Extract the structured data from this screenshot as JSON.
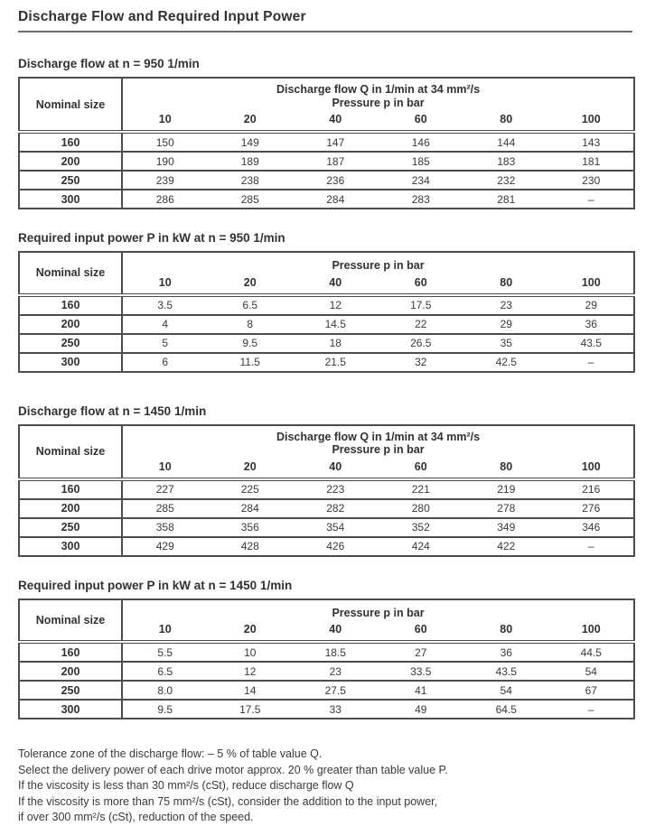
{
  "page": {
    "title": "Discharge Flow and Required Input Power"
  },
  "labels": {
    "nominal_size": "Nominal size",
    "flow_header": "Discharge flow Q in 1/min at 34 mm²/s",
    "pressure_header": "Pressure p in bar"
  },
  "pressure_columns": [
    "10",
    "20",
    "40",
    "60",
    "80",
    "100"
  ],
  "tables": [
    {
      "title": "Discharge flow at n = 950 1/min",
      "rows": [
        {
          "size": "160",
          "values": [
            "150",
            "149",
            "147",
            "146",
            "144",
            "143"
          ]
        },
        {
          "size": "200",
          "values": [
            "190",
            "189",
            "187",
            "185",
            "183",
            "181"
          ]
        },
        {
          "size": "250",
          "values": [
            "239",
            "238",
            "236",
            "234",
            "232",
            "230"
          ]
        },
        {
          "size": "300",
          "values": [
            "286",
            "285",
            "284",
            "283",
            "281",
            "–"
          ]
        }
      ]
    },
    {
      "title": "Required input power P in kW at n = 950 1/min",
      "rows": [
        {
          "size": "160",
          "values": [
            "3.5",
            "6.5",
            "12",
            "17.5",
            "23",
            "29"
          ]
        },
        {
          "size": "200",
          "values": [
            "4",
            "8",
            "14.5",
            "22",
            "29",
            "36"
          ]
        },
        {
          "size": "250",
          "values": [
            "5",
            "9.5",
            "18",
            "26.5",
            "35",
            "43.5"
          ]
        },
        {
          "size": "300",
          "values": [
            "6",
            "11.5",
            "21.5",
            "32",
            "42.5",
            "–"
          ]
        }
      ]
    },
    {
      "title": "Discharge flow at n = 1450 1/min",
      "rows": [
        {
          "size": "160",
          "values": [
            "227",
            "225",
            "223",
            "221",
            "219",
            "216"
          ]
        },
        {
          "size": "200",
          "values": [
            "285",
            "284",
            "282",
            "280",
            "278",
            "276"
          ]
        },
        {
          "size": "250",
          "values": [
            "358",
            "356",
            "354",
            "352",
            "349",
            "346"
          ]
        },
        {
          "size": "300",
          "values": [
            "429",
            "428",
            "426",
            "424",
            "422",
            "–"
          ]
        }
      ]
    },
    {
      "title": "Required input power P in kW at n = 1450 1/min",
      "rows": [
        {
          "size": "160",
          "values": [
            "5.5",
            "10",
            "18.5",
            "27",
            "36",
            "44.5"
          ]
        },
        {
          "size": "200",
          "values": [
            "6.5",
            "12",
            "23",
            "33.5",
            "43.5",
            "54"
          ]
        },
        {
          "size": "250",
          "values": [
            "8.0",
            "14",
            "27.5",
            "41",
            "54",
            "67"
          ]
        },
        {
          "size": "300",
          "values": [
            "9.5",
            "17.5",
            "33",
            "49",
            "64.5",
            "–"
          ]
        }
      ]
    }
  ],
  "notes": [
    "Tolerance zone of the discharge flow: – 5 % of table value Q.",
    "Select the delivery power of each drive motor approx. 20 % greater than table value P.",
    "If the viscosity is less than 30 mm²/s (cSt), reduce discharge flow Q",
    "If the viscosity is more than 75 mm²/s (cSt), consider the addition to the input power,",
    "if over 300 mm²/s (cSt), reduction of the speed."
  ]
}
